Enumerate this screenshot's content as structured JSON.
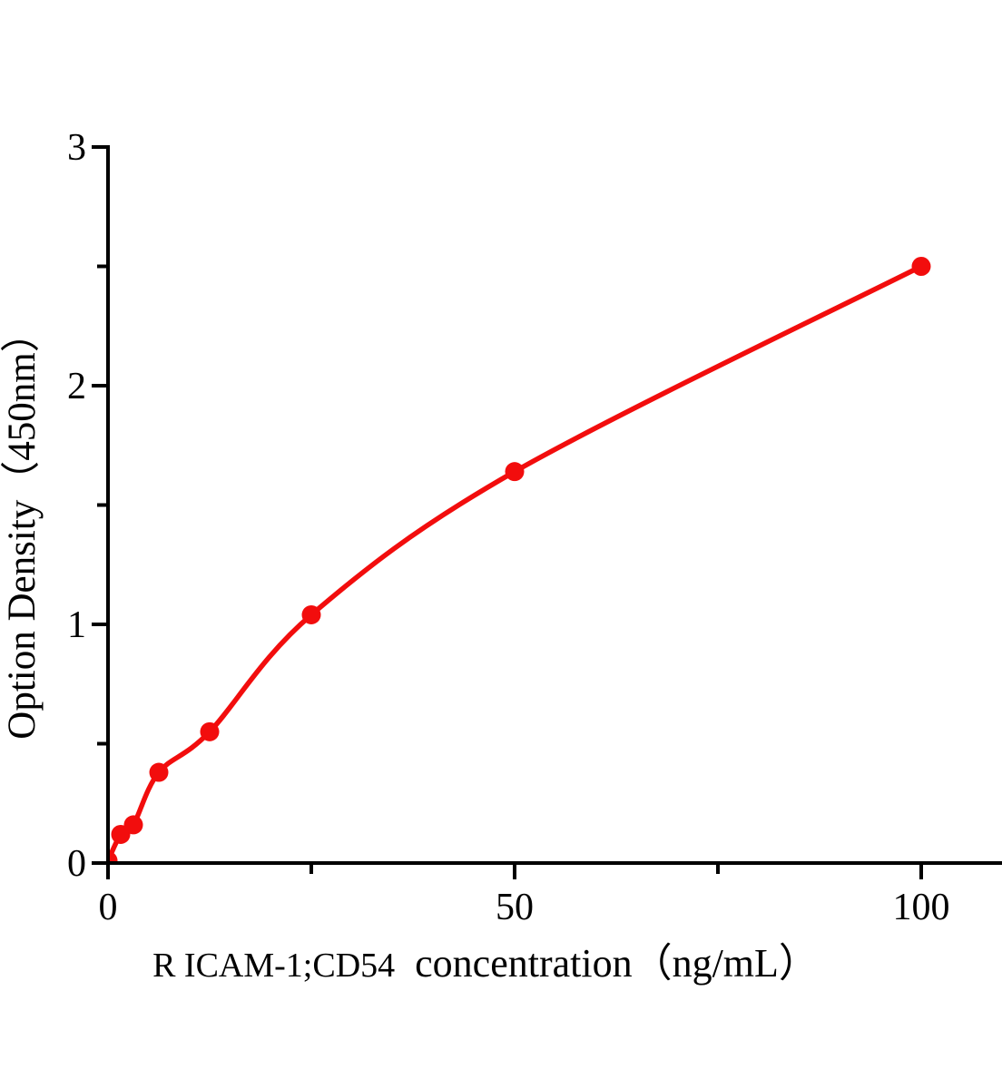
{
  "figure": {
    "background": "#ffffff",
    "description": "ELISA standard curve scatter plot with fitted line"
  },
  "chart_data": {
    "type": "scatter",
    "title": "",
    "xlabel_prefix": "R ICAM-1;CD54",
    "xlabel_main": "concentration（ng/mL）",
    "ylabel": "Option Density（450nm）",
    "x": [
      0,
      1.5625,
      3.125,
      6.25,
      12.5,
      25,
      50,
      100
    ],
    "y": [
      0.01,
      0.12,
      0.16,
      0.38,
      0.55,
      1.04,
      1.64,
      2.5
    ],
    "xlim": [
      0,
      110
    ],
    "ylim": [
      0,
      3
    ],
    "x_major_ticks": [
      0,
      50,
      100
    ],
    "x_minor_ticks": [
      25,
      75
    ],
    "y_major_ticks": [
      0,
      1,
      2,
      3
    ],
    "y_minor_ticks": [
      0.5,
      1.5,
      2.5
    ],
    "grid": false,
    "legend": "none",
    "curve": "smooth fitted line through all points, ends at last point",
    "marker": "filled circle",
    "colors": {
      "line": "#f20d0d",
      "marker": "#f20d0d",
      "axis": "#000000",
      "text": "#000000",
      "background": "#ffffff"
    }
  }
}
